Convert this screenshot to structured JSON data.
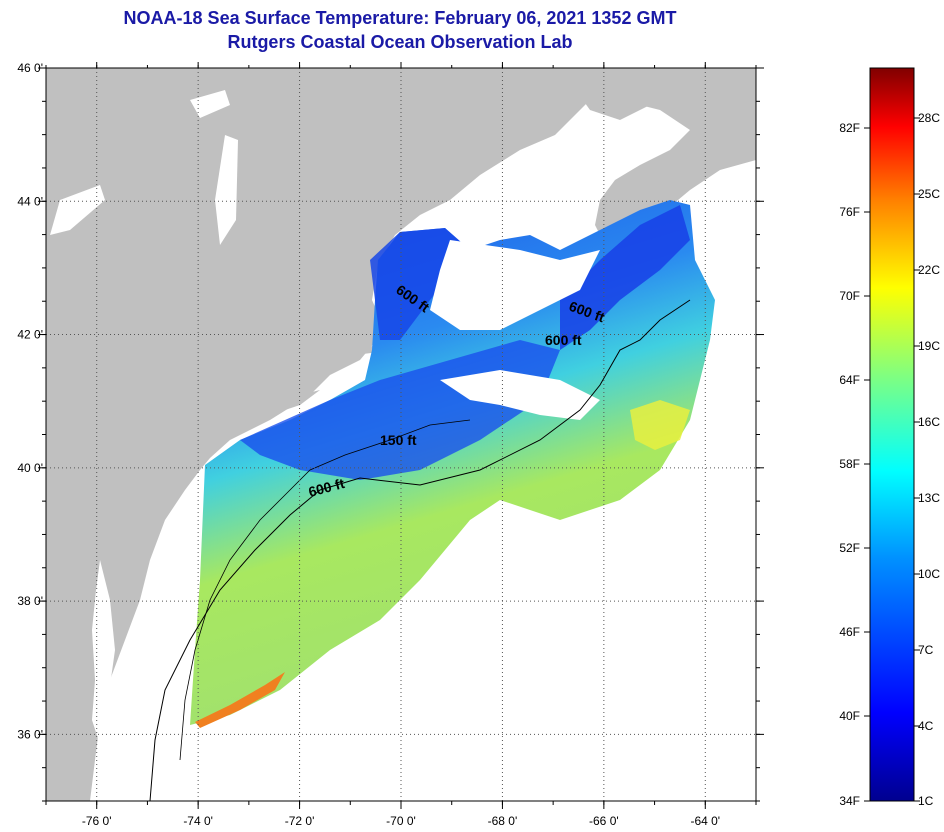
{
  "title": "NOAA-18 Sea Surface Temperature:  February 06, 2021 1352 GMT",
  "subtitle": "Rutgers Coastal Ocean Observation Lab",
  "map": {
    "lat_ticks": [
      "46 0'",
      "44 0'",
      "42 0'",
      "40 0'",
      "38 0'",
      "36 0'"
    ],
    "lat_values": [
      46,
      44,
      42,
      40,
      38,
      36
    ],
    "lon_ticks": [
      "-76 0'",
      "-74 0'",
      "-72 0'",
      "-70 0'",
      "-68 0'",
      "-66 0'",
      "-64 0'"
    ],
    "lon_values": [
      -76,
      -74,
      -72,
      -70,
      -68,
      -66,
      -64
    ],
    "lon_range": [
      -77,
      -63
    ],
    "lat_range": [
      35,
      46
    ],
    "grid": "dotted",
    "land_color": "#c0c0c0",
    "contour_labels": [
      "600 ft",
      "600 ft",
      "600 ft",
      "150 ft",
      "600 ft"
    ]
  },
  "colorbar": {
    "f_labels": [
      "82F",
      "76F",
      "70F",
      "64F",
      "58F",
      "52F",
      "46F",
      "40F",
      "34F"
    ],
    "c_labels": [
      "28C",
      "25C",
      "22C",
      "19C",
      "16C",
      "13C",
      "10C",
      "7C",
      "4C",
      "1C"
    ],
    "colors": [
      "#00008f",
      "#0000ff",
      "#0080ff",
      "#00ffff",
      "#80ff80",
      "#ffff00",
      "#ff8000",
      "#ff0000",
      "#800000"
    ]
  }
}
